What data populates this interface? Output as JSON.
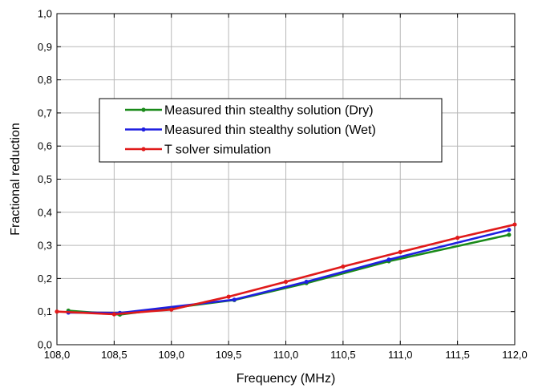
{
  "chart_data": {
    "type": "line",
    "xlabel": "Frequency (MHz)",
    "ylabel": "Fractional reduction",
    "xlim": [
      108.0,
      112.0
    ],
    "ylim": [
      0.0,
      1.0
    ],
    "x_ticks": [
      "108,0",
      "108,5",
      "109,0",
      "109,5",
      "110,0",
      "110,5",
      "111,0",
      "111,5",
      "112,0"
    ],
    "y_ticks": [
      "0,0",
      "0,1",
      "0,2",
      "0,3",
      "0,4",
      "0,5",
      "0,6",
      "0,7",
      "0,8",
      "0,9",
      "1,0"
    ],
    "grid": true,
    "legend_position": "upper-center",
    "series": [
      {
        "name": "Measured thin stealthy solution (Dry)",
        "color": "#1a8a1a",
        "x": [
          108.1,
          108.55,
          109.55,
          110.18,
          110.9,
          111.95
        ],
        "y": [
          0.103,
          0.091,
          0.135,
          0.186,
          0.252,
          0.332
        ]
      },
      {
        "name": "Measured thin stealthy solution (Wet)",
        "color": "#1f1fe0",
        "x": [
          108.1,
          108.55,
          109.55,
          110.18,
          110.9,
          111.95
        ],
        "y": [
          0.097,
          0.096,
          0.136,
          0.19,
          0.257,
          0.347
        ]
      },
      {
        "name": "T solver simulation",
        "color": "#e01a1a",
        "x": [
          108.0,
          108.5,
          109.0,
          109.5,
          110.0,
          110.5,
          111.0,
          111.5,
          112.0
        ],
        "y": [
          0.1,
          0.092,
          0.106,
          0.145,
          0.19,
          0.236,
          0.28,
          0.323,
          0.363
        ]
      }
    ]
  }
}
